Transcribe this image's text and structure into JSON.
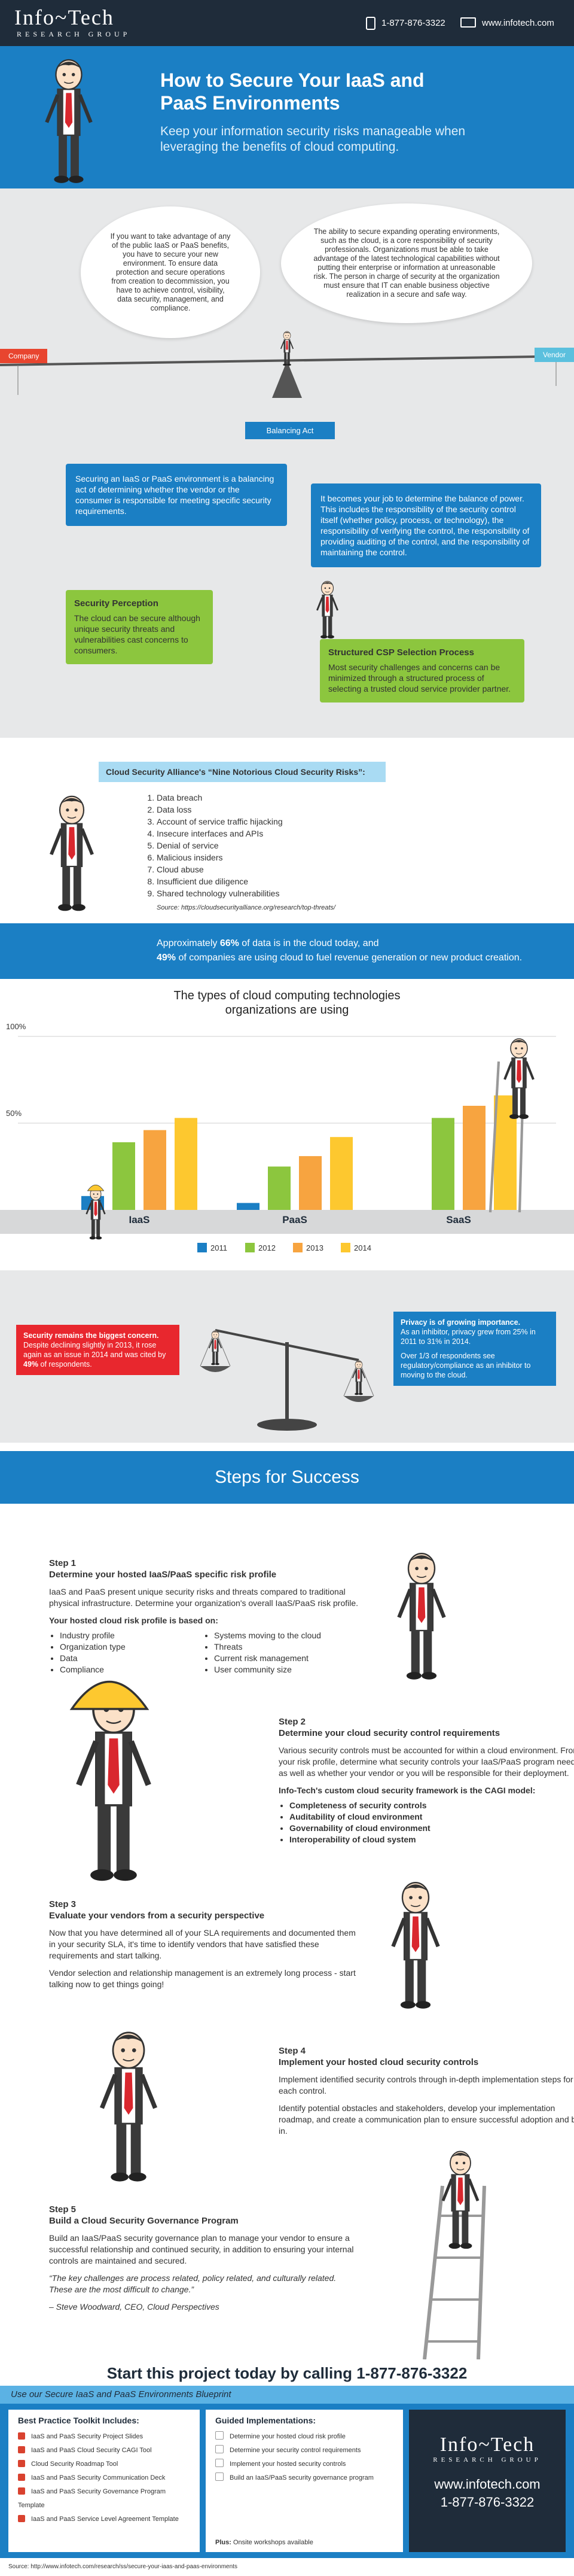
{
  "header": {
    "logo": "Info~Tech",
    "logo_sub": "RESEARCH GROUP",
    "phone": "1-877-876-3322",
    "website": "www.infotech.com"
  },
  "hero": {
    "title": "How to Secure Your IaaS and PaaS Environments",
    "subtitle": "Keep your information security risks manageable when leveraging the benefits of cloud computing."
  },
  "balance": {
    "cloud_left": "If you want to take advantage of any of the public IaaS or PaaS benefits, you have to secure your new environment. To ensure data protection and secure operations from creation to decommission, you have to achieve control, visibility, data security, management, and compliance.",
    "cloud_right": "The ability to secure expanding operating environments, such as the cloud, is a core responsibility of security professionals. Organizations must be able to take advantage of the latest technological capabilities without putting their enterprise or information at unreasonable risk. The person in charge of security at the organization must ensure that IT can enable business objective realization in a secure and safe way.",
    "company": "Company",
    "vendor": "Vendor",
    "balancing_act": "Balancing Act",
    "box_left": "Securing an IaaS or PaaS environment is a balancing act of determining whether the vendor or the consumer is responsible for meeting specific security requirements.",
    "box_right": "It becomes your job to determine the balance of power. This includes the responsibility of the security control itself (whether policy, process, or technology), the responsibility of verifying the control, the responsibility of providing auditing of the control, and the responsibility of maintaining the control.",
    "perception": {
      "title": "Security Perception",
      "text": "The cloud can be secure although unique security threats and vulnerabilities cast concerns to consumers."
    },
    "selection": {
      "title": "Structured CSP Selection Process",
      "text": "Most security challenges and concerns can be minimized through a structured process of selecting a trusted cloud service provider partner."
    }
  },
  "risks": {
    "title": "Cloud Security Alliance's “Nine Notorious Cloud Security Risks”:",
    "items": [
      "Data breach",
      "Data loss",
      "Account of service traffic hijacking",
      "Insecure interfaces and APIs",
      "Denial of service",
      "Malicious insiders",
      "Cloud abuse",
      "Insufficient due diligence",
      "Shared technology vulnerabilities"
    ],
    "source": "Source: https://cloudsecurityalliance.org/research/top-threats/"
  },
  "stats_band": {
    "line1": [
      "Approximately ",
      "66%",
      " of data is in the cloud today, and"
    ],
    "line2": [
      "49%",
      " of companies are using cloud to fuel revenue generation or new product creation."
    ]
  },
  "chart_data": {
    "type": "bar",
    "title": "The types of cloud computing technologies organizations are using",
    "categories": [
      "IaaS",
      "PaaS",
      "SaaS"
    ],
    "series": [
      {
        "name": "2011",
        "color": "#1b7fc4",
        "values": [
          8,
          4,
          null
        ]
      },
      {
        "name": "2012",
        "color": "#8cc63e",
        "values": [
          39,
          25,
          53
        ]
      },
      {
        "name": "2013",
        "color": "#f7a440",
        "values": [
          46,
          31,
          60
        ]
      },
      {
        "name": "2014",
        "color": "#fdc82f",
        "values": [
          53,
          42,
          66
        ]
      }
    ],
    "ylim": [
      0,
      100
    ],
    "yticks": [
      {
        "value": 50,
        "label": "50%"
      },
      {
        "value": 100,
        "label": "100%"
      }
    ],
    "grid": true
  },
  "concerns": {
    "security": {
      "title": "Security remains the biggest concern.",
      "text": [
        "Despite declining slightly in 2013, it rose again as an issue in 2014 and was cited by ",
        "49%",
        " of respondents."
      ]
    },
    "privacy": {
      "title": "Privacy is of growing importance.",
      "text": "As an inhibitor, privacy grew from 25% in 2011 to 31% in 2014.",
      "text2": "Over 1/3 of respondents see regulatory/compliance as an inhibitor to moving to the cloud."
    }
  },
  "steps": {
    "title": "Steps for Success",
    "items": [
      {
        "label": "Step 1",
        "title": "Determine your hosted IaaS/PaaS specific risk profile",
        "paragraphs": [
          "IaaS and PaaS present unique security risks and threats compared to traditional physical infrastructure. Determine your organization's overall IaaS/PaaS risk profile."
        ],
        "list_title": "Your hosted cloud risk profile is based on:",
        "list": [
          "Industry profile",
          "Organization type",
          "Data",
          "Compliance",
          "Systems moving to the cloud",
          "Threats",
          "Current risk management",
          "User community size"
        ]
      },
      {
        "label": "Step 2",
        "title": "Determine your cloud security control requirements",
        "paragraphs": [
          "Various security controls must be accounted for within a cloud environment. From your risk profile, determine what security controls your IaaS/PaaS program needs, as well as whether your vendor or you will be responsible for their deployment."
        ],
        "list_title": "Info-Tech's custom cloud security framework is the CAGI model:",
        "list": [
          "Completeness of security controls",
          "Auditability of cloud environment",
          "Governability of cloud environment",
          "Interoperability of cloud system"
        ]
      },
      {
        "label": "Step 3",
        "title": "Evaluate your vendors from a security perspective",
        "paragraphs": [
          "Now that you have determined all of your SLA requirements and documented them in your security SLA, it's time to identify vendors that have satisfied these requirements and start talking.",
          "Vendor selection and relationship management is an extremely long process - start talking now to get things going!"
        ]
      },
      {
        "label": "Step 4",
        "title": "Implement your hosted cloud security controls",
        "paragraphs": [
          "Implement identified security controls through in-depth implementation steps for each control.",
          "Identify potential obstacles and stakeholders, develop your implementation roadmap, and create a communication plan to ensure successful adoption and buy-in."
        ]
      },
      {
        "label": "Step 5",
        "title": "Build a Cloud Security Governance Program",
        "paragraphs": [
          "Build an IaaS/PaaS security governance plan to manage your vendor to ensure a successful relationship and continued security, in addition to ensuring your internal controls are maintained and secured.",
          "“The key challenges are process related, policy related, and culturally related. These are the most difficult to change.”",
          "– Steve Woodward, CEO, Cloud Perspectives"
        ]
      }
    ]
  },
  "cta": "Start this project today by calling 1-877-876-3322",
  "footer": {
    "blueprint": "Use our Secure IaaS and PaaS Environments Blueprint",
    "toolkit_title": "Best Practice Toolkit Includes:",
    "toolkit": [
      "IaaS and PaaS Security Project Slides",
      "IaaS and PaaS Cloud Security CAGI Tool",
      "Cloud Security Roadmap Tool",
      "IaaS and PaaS Security Communication Deck",
      "IaaS and PaaS Security Governance Program Template",
      "IaaS and PaaS Service Level Agreement Template"
    ],
    "guided_title": "Guided Implementations:",
    "guided": [
      "Determine your hosted cloud risk profile",
      "Determine your security control requirements",
      "Implement your hosted security controls",
      "Build an IaaS/PaaS security governance program"
    ],
    "plus": "Plus:",
    "plus_text": "Onsite workshops available",
    "website": "www.infotech.com",
    "phone": "1-877-876-3322"
  },
  "source": "Source: http://www.infotech.com/research/ss/secure-your-iaas-and-paas-environments"
}
